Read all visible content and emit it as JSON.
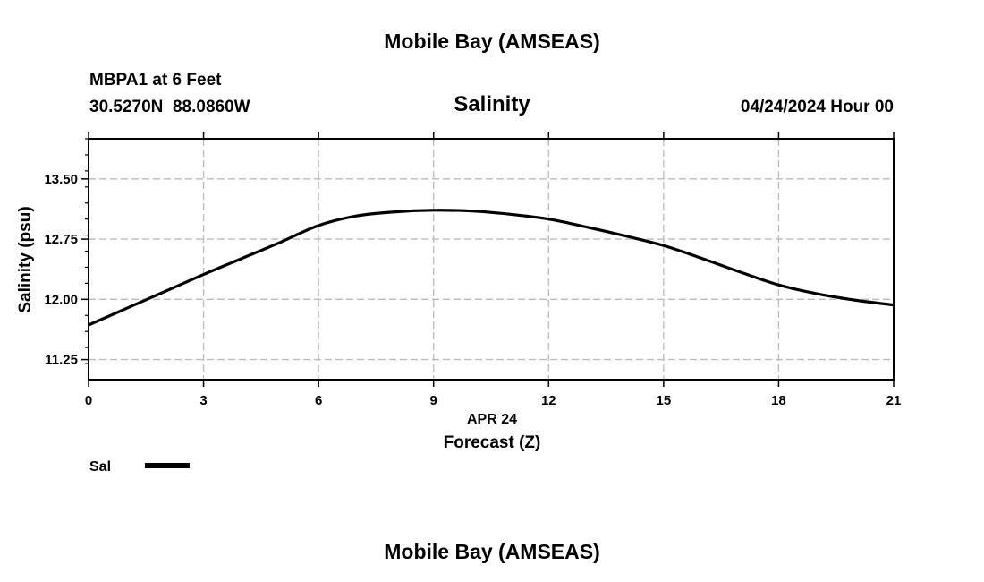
{
  "chart_data": {
    "type": "line",
    "title": "Mobile Bay (AMSEAS)",
    "footer_title": "Mobile Bay (AMSEAS)",
    "station": "MBPA1 at 6 Feet",
    "coordinates": "30.5270N  88.0860W",
    "subtitle": "Salinity",
    "datetime": "04/24/2024 Hour 00",
    "xlabel": "Forecast (Z)",
    "xdate_label": "APR 24",
    "ylabel": "Salinity (psu)",
    "xlim": [
      0,
      21
    ],
    "ylim": [
      11.0,
      14.0
    ],
    "xticks": [
      "0",
      "3",
      "6",
      "9",
      "12",
      "15",
      "18",
      "21"
    ],
    "yticks": [
      "11.25",
      "12.00",
      "12.75",
      "13.50"
    ],
    "grid": true,
    "legend": {
      "position": "bottom-left",
      "entries": [
        "Sal"
      ]
    },
    "series": [
      {
        "name": "Sal",
        "color": "#000000",
        "x": [
          0,
          1,
          2,
          3,
          4,
          5,
          6,
          7,
          8,
          9,
          10,
          11,
          12,
          13,
          14,
          15,
          16,
          17,
          18,
          19,
          20,
          21
        ],
        "values": [
          11.68,
          11.89,
          12.1,
          12.31,
          12.51,
          12.71,
          12.92,
          13.04,
          13.09,
          13.11,
          13.1,
          13.06,
          13.0,
          12.9,
          12.79,
          12.67,
          12.51,
          12.34,
          12.18,
          12.07,
          11.99,
          11.93
        ]
      }
    ]
  }
}
